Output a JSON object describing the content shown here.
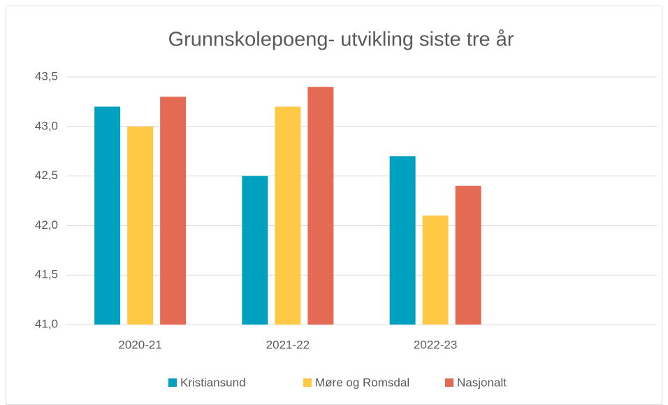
{
  "chart_data": {
    "type": "bar",
    "title": "Grunnskolepoeng- utvikling siste tre år",
    "categories": [
      "2020-21",
      "2021-22",
      "2022-23",
      null
    ],
    "series": [
      {
        "name": "Kristiansund",
        "color": "#00a0c1",
        "values": [
          43.2,
          42.5,
          42.7,
          null
        ]
      },
      {
        "name": "Møre og Romsdal",
        "color": "#ffc845",
        "values": [
          43.0,
          43.2,
          42.1,
          null
        ]
      },
      {
        "name": "Nasjonalt",
        "color": "#e46a53",
        "values": [
          43.3,
          43.4,
          42.4,
          null
        ]
      }
    ],
    "ylim": [
      41.0,
      43.5
    ],
    "yticks": [
      {
        "value": 41.0,
        "label": "41,0"
      },
      {
        "value": 41.5,
        "label": "41,5"
      },
      {
        "value": 42.0,
        "label": "42,0"
      },
      {
        "value": 42.5,
        "label": "42,5"
      },
      {
        "value": 43.0,
        "label": "43,0"
      },
      {
        "value": 43.5,
        "label": "43,5"
      }
    ],
    "grid": true,
    "legend": "bottom"
  }
}
